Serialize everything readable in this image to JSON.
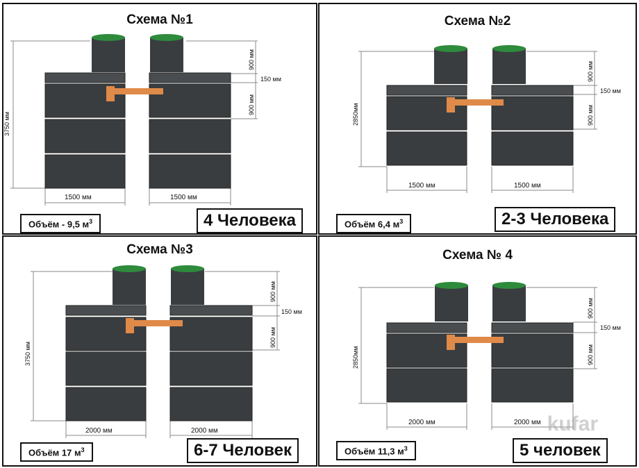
{
  "schemes": [
    {
      "title": "Схема №1",
      "height_label": "3750 мм",
      "neck_label": "900 мм",
      "slab_label": "150 мм",
      "ring_label": "900 мм",
      "width_left": "1500 мм",
      "width_right": "1500 мм",
      "volume_prefix": "Объём - 9,5 м",
      "volume_sup": "3",
      "people": "4 Человека"
    },
    {
      "title": "Схема №2",
      "height_label": "2850мм",
      "neck_label": "900 мм",
      "slab_label": "150 мм",
      "ring_label": "900 мм",
      "width_left": "1500 мм",
      "width_right": "1500 мм",
      "volume_prefix": "Объём 6,4 м",
      "volume_sup": "3",
      "people": "2-3 Человека"
    },
    {
      "title": "Схема №3",
      "height_label": "3750 мм",
      "neck_label": "900 мм",
      "slab_label": "150 мм",
      "ring_label": "900 мм",
      "width_left": "2000 мм",
      "width_right": "2000 мм",
      "volume_prefix": "Объём 17   м",
      "volume_sup": "3",
      "people": "6-7 Человек"
    },
    {
      "title": "Схема № 4",
      "height_label": "2850мм",
      "neck_label": "900 мм",
      "slab_label": "150 мм",
      "ring_label": "900 мм",
      "width_left": "2000 мм",
      "width_right": "2000 мм",
      "volume_prefix": "Объём 11,3 м",
      "volume_sup": "3",
      "people": "5 человек"
    }
  ],
  "watermark": "kufar",
  "colors": {
    "concrete": "#3a3d40",
    "concrete_light": "#4a4d50",
    "lid": "#2e8b3c",
    "pipe": "#e08a4a",
    "dim_line": "#888888"
  }
}
